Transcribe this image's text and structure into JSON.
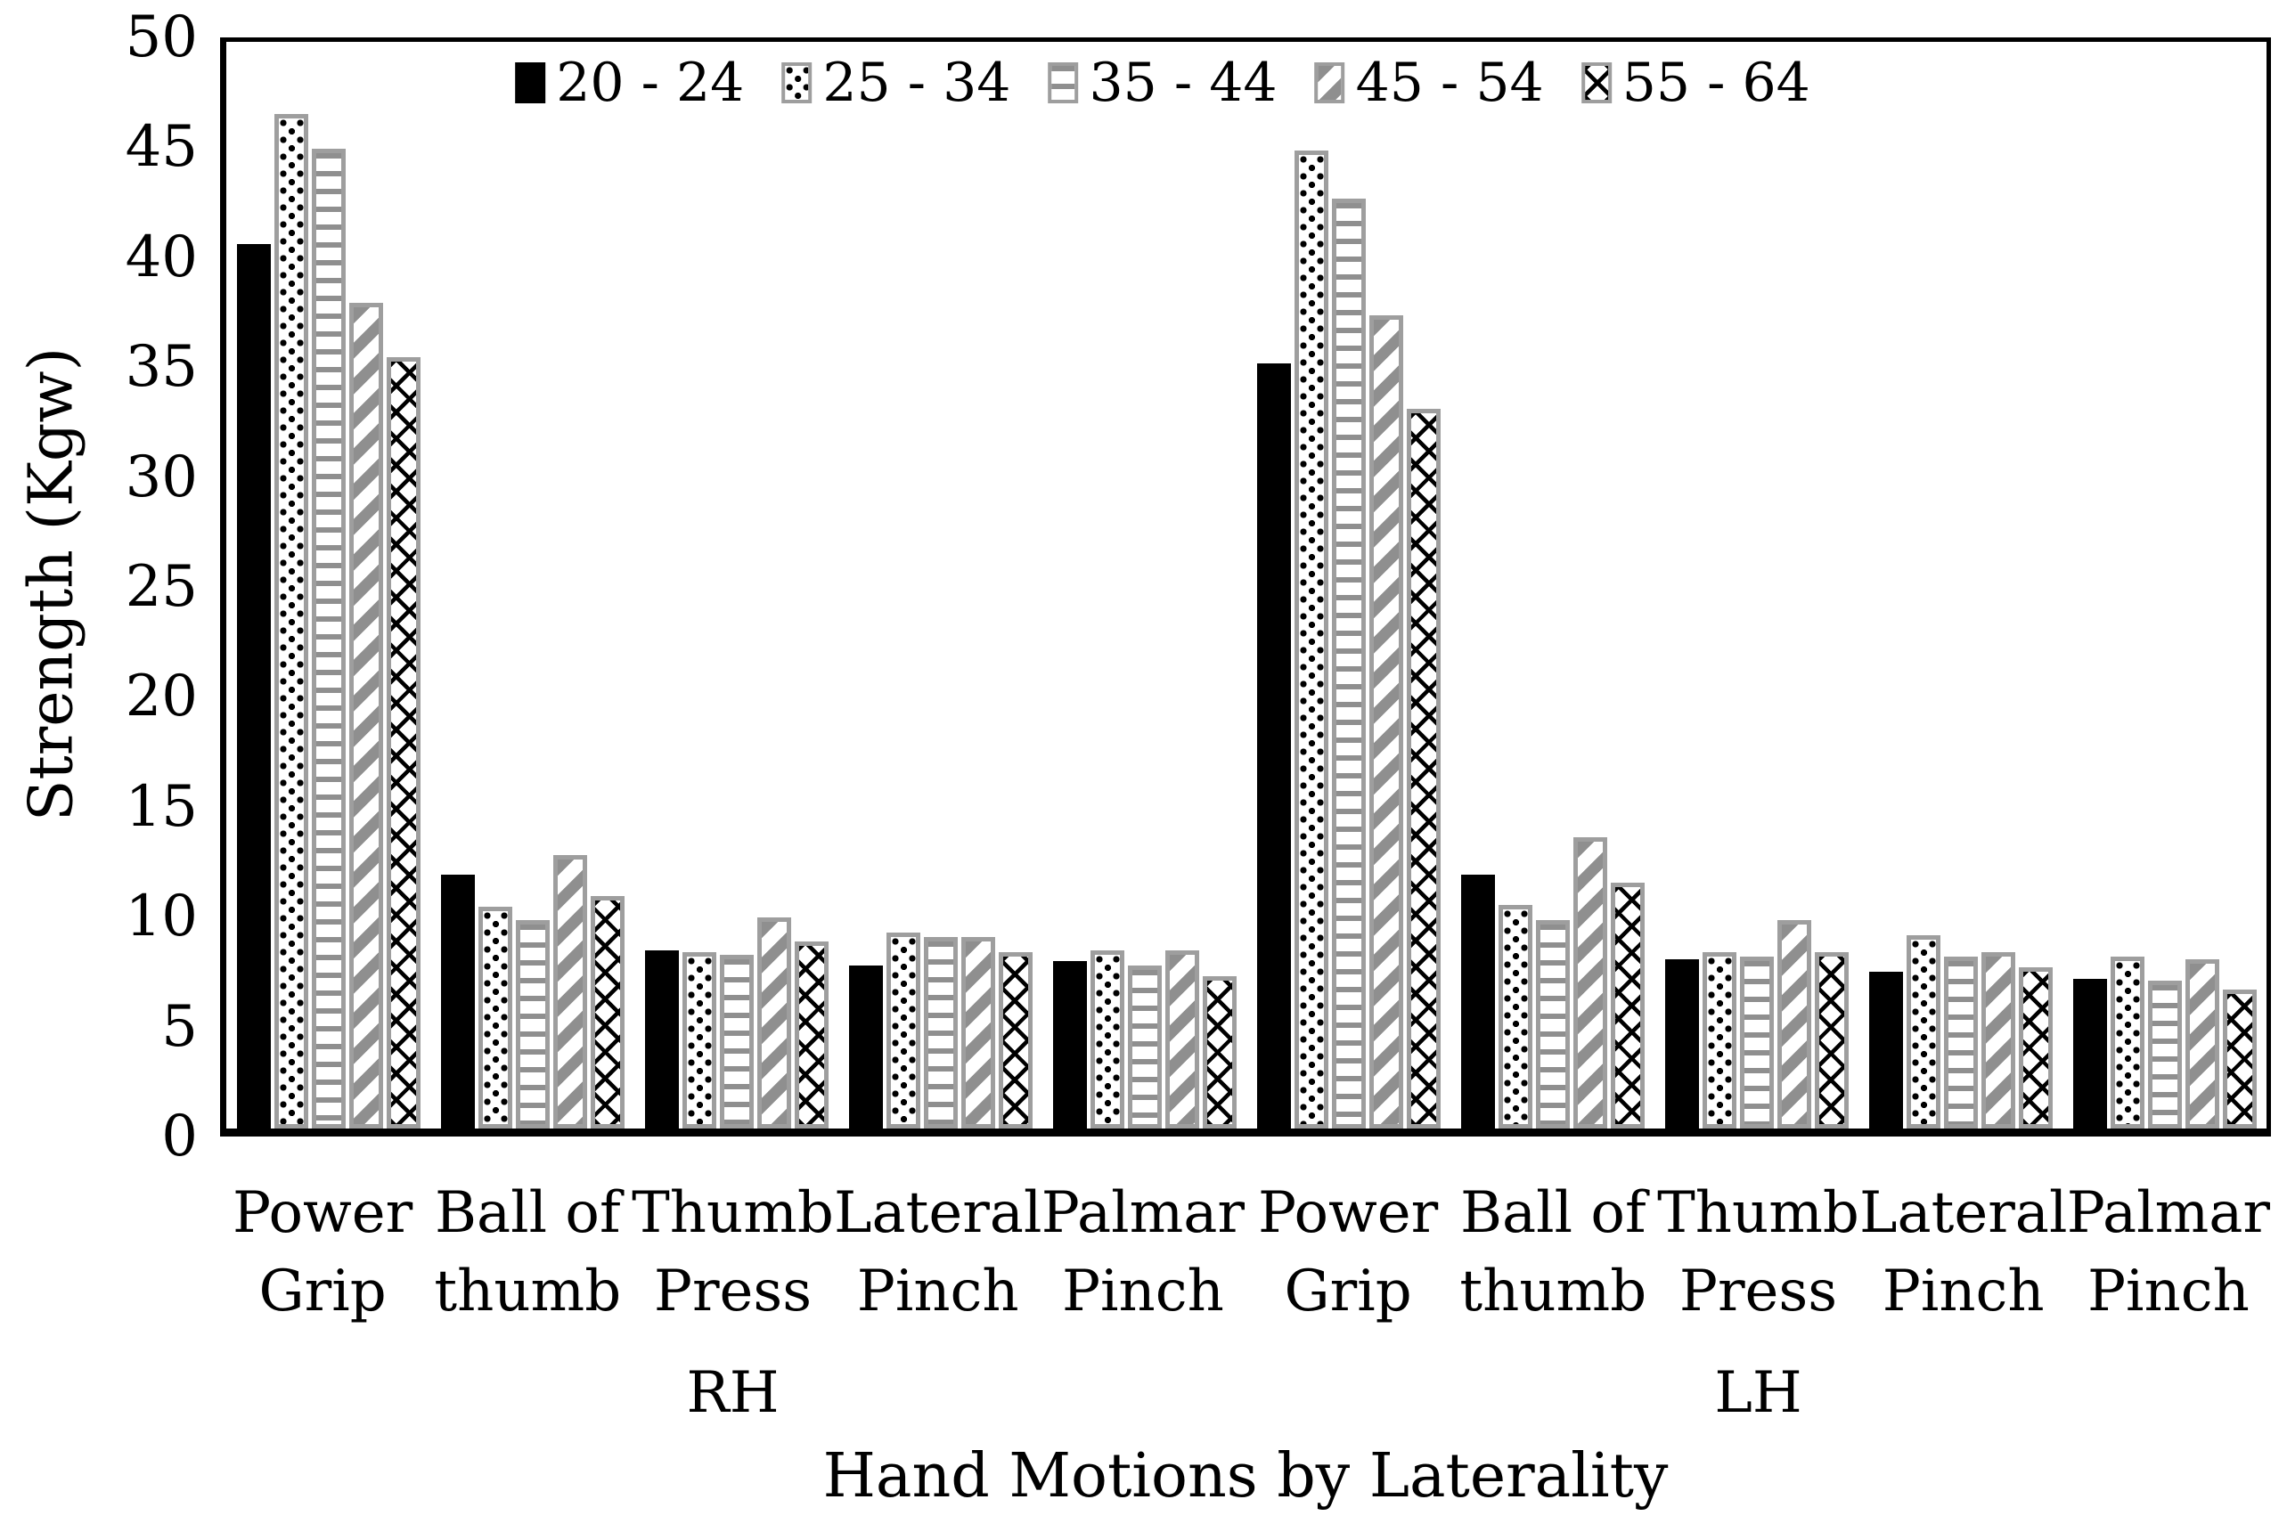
{
  "colors": {
    "ink": "#000000",
    "pattern_gray": "#8f8f8f",
    "bar_border_gray": "#9e9e9e",
    "background": "#ffffff"
  },
  "chart_data": {
    "type": "bar",
    "title": "",
    "xlabel": "Hand Motions by Laterality",
    "ylabel": "Strength (Kgw)",
    "ylim": [
      0,
      50
    ],
    "y_ticks": [
      0,
      5,
      10,
      15,
      20,
      25,
      30,
      35,
      40,
      45,
      50
    ],
    "grid": "off",
    "legend_position": "top-center-inside",
    "laterality_labels": [
      "RH",
      "LH"
    ],
    "categories": [
      "Power Grip",
      "Ball of thumb",
      "Thumb Press",
      "Lateral Pinch",
      "Palmar Pinch",
      "Power Grip",
      "Ball of thumb",
      "Thumb Press",
      "Lateral Pinch",
      "Palmar Pinch"
    ],
    "category_lines": [
      [
        "Power",
        "Grip"
      ],
      [
        "Ball of",
        "thumb"
      ],
      [
        "Thumb",
        "Press"
      ],
      [
        "Lateral",
        "Pinch"
      ],
      [
        "Palmar",
        "Pinch"
      ],
      [
        "Power",
        "Grip"
      ],
      [
        "Ball of",
        "thumb"
      ],
      [
        "Thumb",
        "Press"
      ],
      [
        "Lateral",
        "Pinch"
      ],
      [
        "Palmar",
        "Pinch"
      ]
    ],
    "series": [
      {
        "name": "20 - 24",
        "pattern": "solid",
        "values": [
          40.7,
          11.7,
          8.2,
          7.5,
          7.7,
          35.2,
          11.7,
          7.8,
          7.2,
          6.9
        ]
      },
      {
        "name": "25 - 34",
        "pattern": "dots",
        "values": [
          46.7,
          10.2,
          8.1,
          9.0,
          8.2,
          45.0,
          10.3,
          8.1,
          8.9,
          7.9
        ]
      },
      {
        "name": "35 - 44",
        "pattern": "hlines",
        "values": [
          45.1,
          9.6,
          8.0,
          8.8,
          7.5,
          42.8,
          9.6,
          7.9,
          7.9,
          6.8
        ]
      },
      {
        "name": "45 - 54",
        "pattern": "diag",
        "values": [
          38.0,
          12.6,
          9.7,
          8.8,
          8.2,
          37.4,
          13.4,
          9.6,
          8.1,
          7.8
        ]
      },
      {
        "name": "55 - 64",
        "pattern": "cross",
        "values": [
          35.5,
          10.7,
          8.6,
          8.1,
          7.0,
          33.1,
          11.3,
          8.1,
          7.4,
          6.4
        ]
      }
    ]
  }
}
